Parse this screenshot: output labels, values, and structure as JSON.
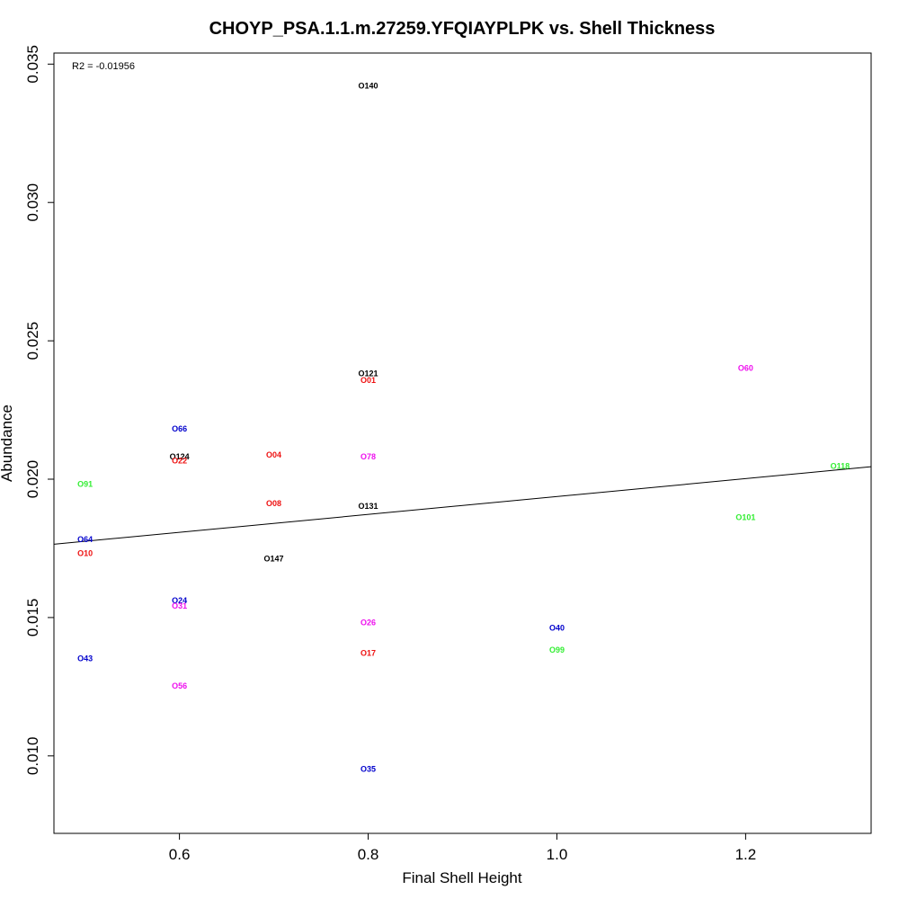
{
  "chart_data": {
    "type": "scatter",
    "title": "CHOYP_PSA.1.1.m.27259.YFQIAYPLPK vs. Shell Thickness",
    "xlabel": "Final Shell Height",
    "ylabel": "Abundance",
    "xlim": [
      0.467,
      1.333
    ],
    "ylim": [
      0.0072,
      0.0354
    ],
    "x_ticks": [
      "0.6",
      "0.8",
      "1.0",
      "1.2"
    ],
    "y_ticks": [
      "0.010",
      "0.015",
      "0.020",
      "0.025",
      "0.030",
      "0.035"
    ],
    "annotation": "R2 = -0.01956",
    "regression_line": {
      "x": [
        0.467,
        1.333
      ],
      "y": [
        0.01765,
        0.02045
      ]
    },
    "colors": {
      "red": "#ee1111",
      "green": "#33ee33",
      "blue": "#0000cc",
      "black": "#000000",
      "magenta": "#ee11ee"
    },
    "points": [
      {
        "label": "O140",
        "x": 0.8,
        "y": 0.0342,
        "color": "black"
      },
      {
        "label": "O121",
        "x": 0.8,
        "y": 0.0238,
        "color": "black"
      },
      {
        "label": "O01",
        "x": 0.8,
        "y": 0.02355,
        "color": "red"
      },
      {
        "label": "O60",
        "x": 1.2,
        "y": 0.024,
        "color": "magenta"
      },
      {
        "label": "O66",
        "x": 0.6,
        "y": 0.0218,
        "color": "blue"
      },
      {
        "label": "O124",
        "x": 0.6,
        "y": 0.0208,
        "color": "black"
      },
      {
        "label": "O22",
        "x": 0.6,
        "y": 0.02065,
        "color": "red"
      },
      {
        "label": "O04",
        "x": 0.7,
        "y": 0.02085,
        "color": "red"
      },
      {
        "label": "O78",
        "x": 0.8,
        "y": 0.0208,
        "color": "magenta"
      },
      {
        "label": "O118",
        "x": 1.3,
        "y": 0.02045,
        "color": "green"
      },
      {
        "label": "O91",
        "x": 0.5,
        "y": 0.0198,
        "color": "green"
      },
      {
        "label": "O08",
        "x": 0.7,
        "y": 0.0191,
        "color": "red"
      },
      {
        "label": "O131",
        "x": 0.8,
        "y": 0.019,
        "color": "black"
      },
      {
        "label": "O101",
        "x": 1.2,
        "y": 0.0186,
        "color": "green"
      },
      {
        "label": "O64",
        "x": 0.5,
        "y": 0.0178,
        "color": "blue"
      },
      {
        "label": "O10",
        "x": 0.5,
        "y": 0.0173,
        "color": "red"
      },
      {
        "label": "O147",
        "x": 0.7,
        "y": 0.0171,
        "color": "black"
      },
      {
        "label": "O24",
        "x": 0.6,
        "y": 0.0156,
        "color": "blue"
      },
      {
        "label": "O31",
        "x": 0.6,
        "y": 0.0154,
        "color": "magenta"
      },
      {
        "label": "O26",
        "x": 0.8,
        "y": 0.0148,
        "color": "magenta"
      },
      {
        "label": "O40",
        "x": 1.0,
        "y": 0.0146,
        "color": "blue"
      },
      {
        "label": "O99",
        "x": 1.0,
        "y": 0.0138,
        "color": "green"
      },
      {
        "label": "O17",
        "x": 0.8,
        "y": 0.0137,
        "color": "red"
      },
      {
        "label": "O43",
        "x": 0.5,
        "y": 0.0135,
        "color": "blue"
      },
      {
        "label": "O56",
        "x": 0.6,
        "y": 0.0125,
        "color": "magenta"
      },
      {
        "label": "O35",
        "x": 0.8,
        "y": 0.0095,
        "color": "blue"
      }
    ]
  }
}
